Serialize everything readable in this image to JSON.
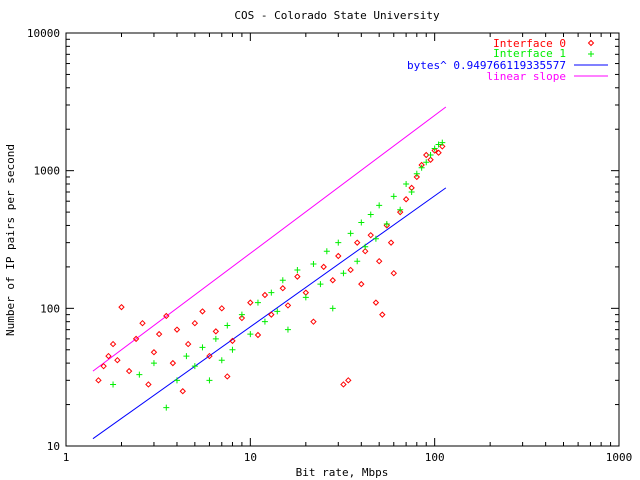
{
  "colors": {
    "interface0": "#ff0000",
    "interface1": "#00ee00",
    "fit": "#0000ff",
    "linear": "#ff00ff",
    "frame": "#000000"
  },
  "chart_data": {
    "type": "scatter",
    "title": "COS - Colorado State University",
    "xlabel": "Bit rate, Mbps",
    "ylabel": "Number of IP pairs per second",
    "xscale": "log",
    "yscale": "log",
    "xlim": [
      1,
      1000
    ],
    "ylim": [
      10,
      10000
    ],
    "xticks": [
      "1",
      "10",
      "100",
      "1000"
    ],
    "yticks": [
      "10",
      "100",
      "1000",
      "10000"
    ],
    "grid": false,
    "legend_position": "top-right",
    "series": [
      {
        "name": "Interface 0",
        "marker": "diamond",
        "points": [
          [
            1.5,
            30
          ],
          [
            1.6,
            38
          ],
          [
            1.7,
            45
          ],
          [
            1.8,
            55
          ],
          [
            1.9,
            42
          ],
          [
            2.0,
            102
          ],
          [
            2.2,
            35
          ],
          [
            2.4,
            60
          ],
          [
            2.6,
            78
          ],
          [
            2.8,
            28
          ],
          [
            3.0,
            48
          ],
          [
            3.2,
            65
          ],
          [
            3.5,
            88
          ],
          [
            3.8,
            40
          ],
          [
            4.0,
            70
          ],
          [
            4.3,
            25
          ],
          [
            4.6,
            55
          ],
          [
            5.0,
            78
          ],
          [
            5.5,
            95
          ],
          [
            6.0,
            45
          ],
          [
            6.5,
            68
          ],
          [
            7.0,
            100
          ],
          [
            7.5,
            32
          ],
          [
            8.0,
            58
          ],
          [
            9.0,
            85
          ],
          [
            10.0,
            110
          ],
          [
            11.0,
            64
          ],
          [
            12.0,
            125
          ],
          [
            13.0,
            90
          ],
          [
            15.0,
            140
          ],
          [
            16.0,
            105
          ],
          [
            18.0,
            170
          ],
          [
            20.0,
            130
          ],
          [
            22.0,
            80
          ],
          [
            25.0,
            200
          ],
          [
            28.0,
            160
          ],
          [
            30.0,
            240
          ],
          [
            32.0,
            28
          ],
          [
            34.0,
            30
          ],
          [
            35.0,
            190
          ],
          [
            38.0,
            300
          ],
          [
            40.0,
            150
          ],
          [
            42.0,
            260
          ],
          [
            45.0,
            340
          ],
          [
            48.0,
            110
          ],
          [
            50.0,
            220
          ],
          [
            52.0,
            90
          ],
          [
            55.0,
            400
          ],
          [
            58.0,
            300
          ],
          [
            60.0,
            180
          ],
          [
            65.0,
            500
          ],
          [
            70.0,
            620
          ],
          [
            75.0,
            750
          ],
          [
            80.0,
            900
          ],
          [
            85.0,
            1100
          ],
          [
            90.0,
            1300
          ],
          [
            95.0,
            1200
          ],
          [
            100.0,
            1400
          ],
          [
            105.0,
            1350
          ],
          [
            110.0,
            1500
          ]
        ]
      },
      {
        "name": "Interface 1",
        "marker": "plus",
        "points": [
          [
            1.8,
            28
          ],
          [
            2.5,
            33
          ],
          [
            3.0,
            40
          ],
          [
            3.5,
            19
          ],
          [
            4.0,
            30
          ],
          [
            4.5,
            45
          ],
          [
            5.0,
            38
          ],
          [
            5.5,
            52
          ],
          [
            6.0,
            30
          ],
          [
            6.5,
            60
          ],
          [
            7.0,
            42
          ],
          [
            7.5,
            75
          ],
          [
            8.0,
            50
          ],
          [
            9.0,
            90
          ],
          [
            10.0,
            65
          ],
          [
            11.0,
            110
          ],
          [
            12.0,
            80
          ],
          [
            13.0,
            130
          ],
          [
            14.0,
            95
          ],
          [
            15.0,
            160
          ],
          [
            16.0,
            70
          ],
          [
            18.0,
            190
          ],
          [
            20.0,
            120
          ],
          [
            22.0,
            210
          ],
          [
            24.0,
            150
          ],
          [
            26.0,
            260
          ],
          [
            28.0,
            100
          ],
          [
            30.0,
            300
          ],
          [
            32.0,
            180
          ],
          [
            35.0,
            350
          ],
          [
            38.0,
            220
          ],
          [
            40.0,
            420
          ],
          [
            42.0,
            280
          ],
          [
            45.0,
            480
          ],
          [
            48.0,
            320
          ],
          [
            50.0,
            560
          ],
          [
            55.0,
            410
          ],
          [
            60.0,
            650
          ],
          [
            65.0,
            520
          ],
          [
            70.0,
            800
          ],
          [
            75.0,
            700
          ],
          [
            80.0,
            950
          ],
          [
            85.0,
            1050
          ],
          [
            90.0,
            1150
          ],
          [
            95.0,
            1300
          ],
          [
            100.0,
            1450
          ],
          [
            105.0,
            1550
          ],
          [
            110.0,
            1600
          ]
        ]
      },
      {
        "name": "bytes^ 0.949766119335577",
        "type": "line",
        "x": [
          1.4,
          115
        ],
        "y": [
          11.3,
          750
        ]
      },
      {
        "name": "linear slope",
        "type": "line",
        "x": [
          1.4,
          115
        ],
        "y": [
          35,
          2900
        ]
      }
    ]
  }
}
